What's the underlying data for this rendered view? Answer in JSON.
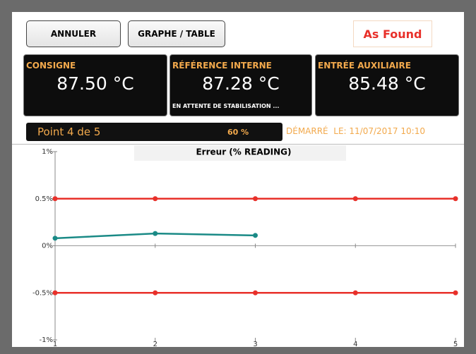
{
  "buttons": [
    "ANNULER",
    "GRAPHE / TABLE"
  ],
  "status_mode": "As Found",
  "panels": [
    {
      "label": "CONSIGNE",
      "value": "87.50 °C"
    },
    {
      "label": "RÉFÉRENCE INTERNE",
      "value": "87.28 °C",
      "note": "EN ATTENTE DE STABILISATION ..."
    },
    {
      "label": "ENTRÉE AUXILIAIRE",
      "value": "85.48 °C"
    }
  ],
  "progress": {
    "point": "Point 4 de 5",
    "percent": "60 %",
    "started": "DÉMARRÉ  LE: 11/07/2017 10:10"
  },
  "chart_data": {
    "type": "line",
    "title": "Erreur (% READING)",
    "x": [
      1,
      2,
      3,
      4,
      5
    ],
    "xlim": [
      1,
      5
    ],
    "xticks": [
      1,
      2,
      3,
      4,
      5
    ],
    "ylim": [
      -1,
      1
    ],
    "yticks": [
      {
        "value": 1,
        "label": "1%"
      },
      {
        "value": 0.5,
        "label": "0.5%"
      },
      {
        "value": 0,
        "label": "0%"
      },
      {
        "value": -0.5,
        "label": "-0.5%"
      },
      {
        "value": -1,
        "label": "-1%"
      }
    ],
    "series": [
      {
        "color": "#e8302a",
        "values": [
          0.5,
          0.5,
          0.5,
          0.5,
          0.5
        ]
      },
      {
        "color": "#e8302a",
        "values": [
          -0.5,
          -0.5,
          -0.5,
          -0.5,
          -0.5
        ]
      },
      {
        "color": "#1a8a86",
        "values": [
          0.08,
          0.13,
          0.11,
          null,
          null
        ]
      }
    ]
  }
}
